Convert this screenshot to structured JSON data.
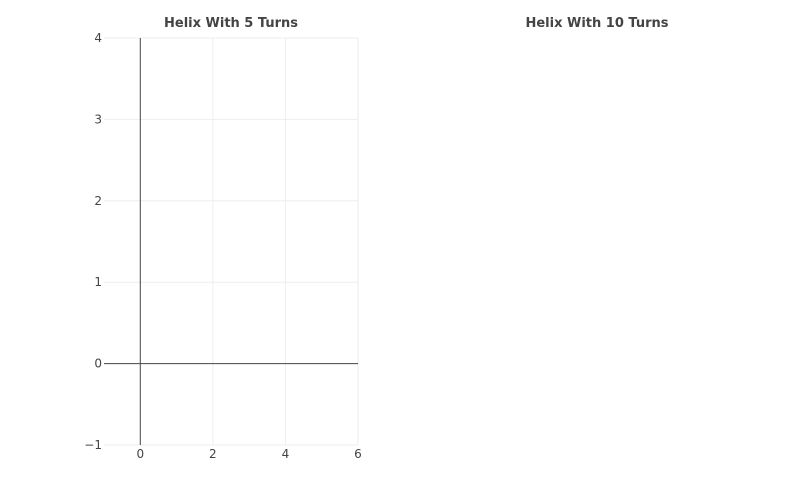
{
  "chart_data": [
    {
      "type": "line",
      "title": "Helix With 5 Turns",
      "xlabel": "",
      "ylabel": "",
      "xlim": [
        -1,
        6
      ],
      "ylim": [
        -1,
        4
      ],
      "x_ticks": [
        0,
        2,
        4,
        6
      ],
      "y_ticks": [
        -1,
        0,
        1,
        2,
        3,
        4
      ],
      "x_tick_labels": [
        "0",
        "2",
        "4",
        "6"
      ],
      "y_tick_labels": [
        "−1",
        "0",
        "1",
        "2",
        "3",
        "4"
      ],
      "grid": true,
      "zero_lines": true,
      "series": []
    },
    {
      "type": "line",
      "title": "Helix With 10 Turns",
      "xlabel": "",
      "ylabel": "",
      "series": []
    }
  ],
  "colors": {
    "grid": "#eeeeee",
    "zeroline": "#444444",
    "text": "#444444",
    "background": "#ffffff"
  }
}
